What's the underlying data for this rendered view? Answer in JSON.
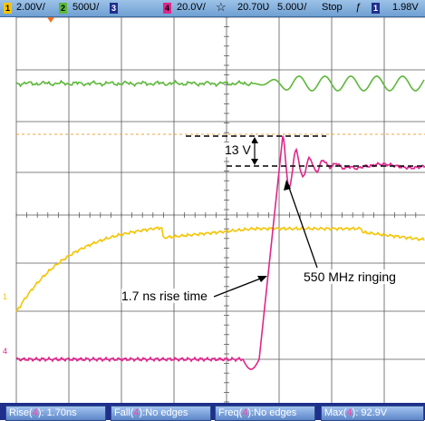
{
  "status_bar": {
    "ch1_number": "1",
    "ch1_scale": "2.00V/",
    "ch2_number": "2",
    "ch2_scale": "500Ʋ/",
    "ch3_number": "3",
    "ch4_number": "4",
    "ch4_scale": "20.0V/",
    "trigger_icon": "☆",
    "time_offset": "20.70Ʋ",
    "time_scale": "5.00Ʋ/",
    "run_state": "Stop",
    "trigger_slope": "ƒ",
    "trigger_channel": "1",
    "trigger_level": "1.98V"
  },
  "annotations": {
    "overshoot": "13 V",
    "rise_time": "1.7 ns rise time",
    "ringing": "550 MHz ringing"
  },
  "measurements": [
    {
      "name": "Rise",
      "channel": "4",
      "value": ": 1.70ns"
    },
    {
      "name": "Fall",
      "channel": "4",
      "value": ":No edges"
    },
    {
      "name": "Freq",
      "channel": "4",
      "value": ":No edges"
    },
    {
      "name": "Max",
      "channel": "4",
      "value": ": 92.9V"
    }
  ],
  "colors": {
    "ch1": "#f5c400",
    "ch2": "#5cb83a",
    "ch4": "#e0268c",
    "trigger_level_line": "#f0a040",
    "grid": "#5a5a5a"
  },
  "markers": {
    "ch1_ground": "1",
    "ch4_ground": "4"
  }
}
